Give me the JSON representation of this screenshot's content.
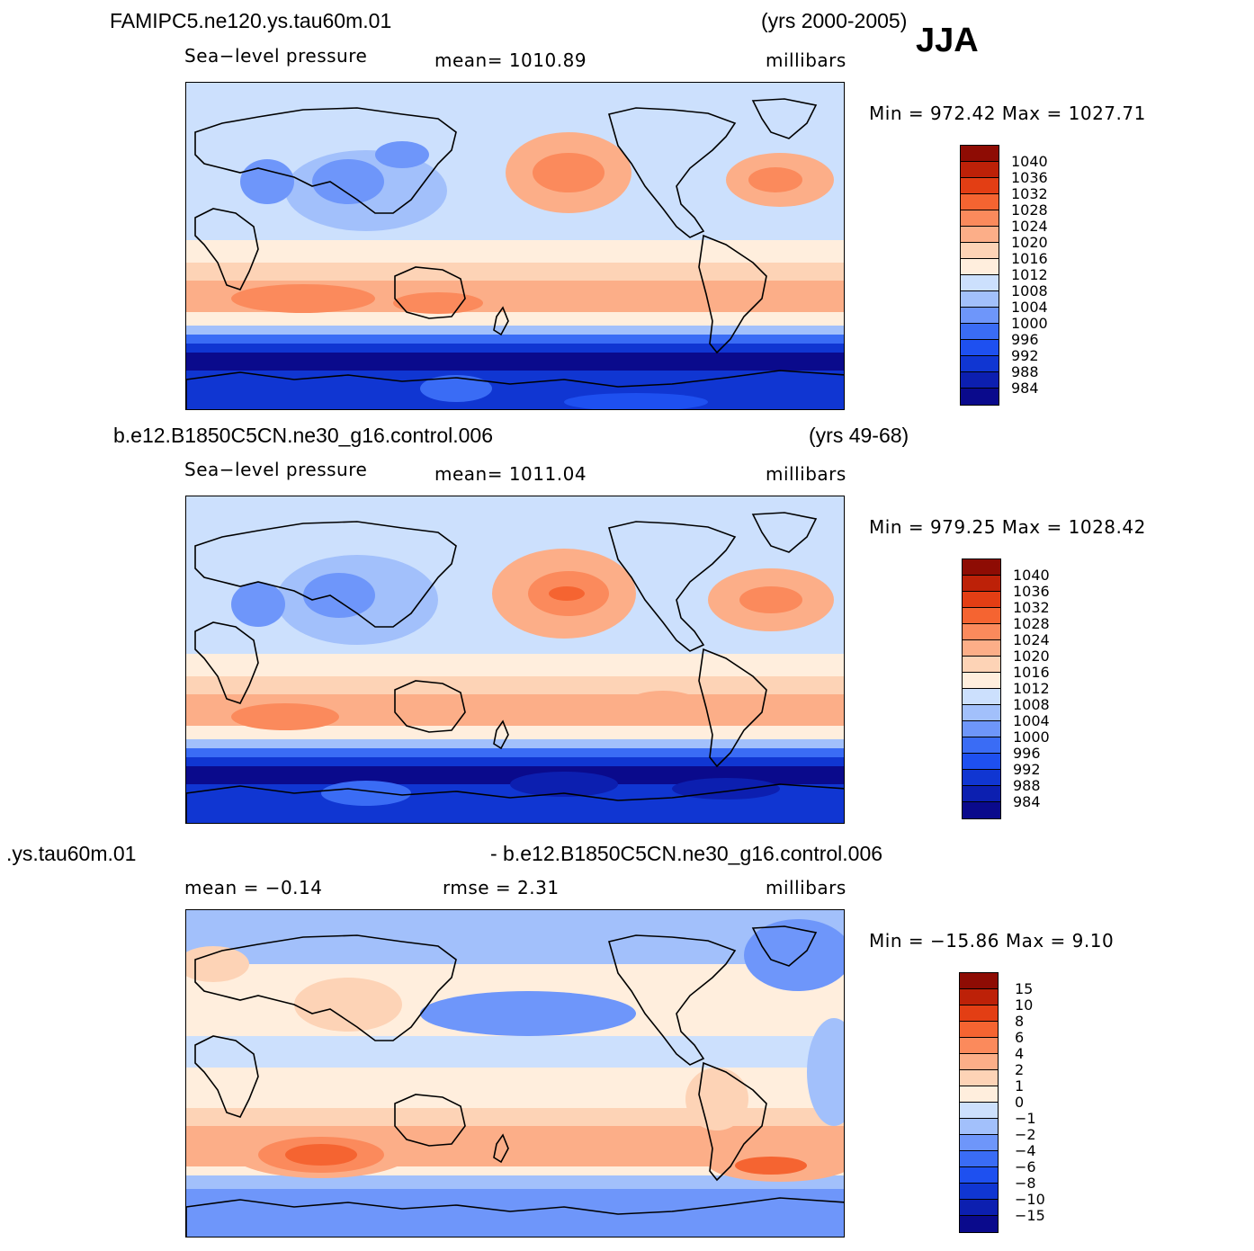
{
  "season": "JJA",
  "colors": {
    "abs_scale": [
      "#0a0a8c",
      "#0c1fb0",
      "#1036d2",
      "#1e50f0",
      "#3a6cf5",
      "#6e96fa",
      "#a2c0fb",
      "#cce0fd",
      "#ffeedd",
      "#fdd3b6",
      "#fcae88",
      "#fb8a5c",
      "#f56431",
      "#e33e14",
      "#bd2108",
      "#8e0c04"
    ],
    "diff_scale": [
      "#0a0a8c",
      "#0c1fb0",
      "#1036d2",
      "#1e50f0",
      "#3a6cf5",
      "#6e96fa",
      "#a2c0fb",
      "#cce0fd",
      "#ffeedd",
      "#fdd3b6",
      "#fcae88",
      "#fb8a5c",
      "#f56431",
      "#e33e14",
      "#bd2108",
      "#8e0c04"
    ]
  },
  "panels": [
    {
      "title_left": "FAMIPC5.ne120.ys.tau60m.01",
      "title_right": "(yrs 2000-2005)",
      "variable": "Sea−level pressure",
      "stat": "mean=  1010.89",
      "units": "millibars",
      "minmax": "Min  =  972.42  Max  =  1027.71",
      "field_type": "model",
      "levels": [
        "1040",
        "1036",
        "1032",
        "1028",
        "1024",
        "1020",
        "1016",
        "1012",
        "1008",
        "1004",
        "1000",
        "996",
        "992",
        "988",
        "984"
      ]
    },
    {
      "title_left": "b.e12.B1850C5CN.ne30_g16.control.006",
      "title_right": "(yrs 49-68)",
      "variable": "Sea−level pressure",
      "stat": "mean=  1011.04",
      "units": "millibars",
      "minmax": "Min  =  979.25  Max  =  1028.42",
      "field_type": "control",
      "levels": [
        "1040",
        "1036",
        "1032",
        "1028",
        "1024",
        "1020",
        "1016",
        "1012",
        "1008",
        "1004",
        "1000",
        "996",
        "992",
        "988",
        "984"
      ]
    },
    {
      "title_left": ".ys.tau60m.01",
      "title_right": "- b.e12.B1850C5CN.ne30_g16.control.006",
      "variable": "mean  =    −0.14",
      "stat": "rmse  =     2.31",
      "units": "millibars",
      "minmax": "Min  =  −15.86  Max  =      9.10",
      "field_type": "diff",
      "levels": [
        "15",
        "10",
        "8",
        "6",
        "4",
        "2",
        "1",
        "0",
        "−1",
        "−2",
        "−4",
        "−6",
        "−8",
        "−10",
        "−15"
      ]
    }
  ]
}
